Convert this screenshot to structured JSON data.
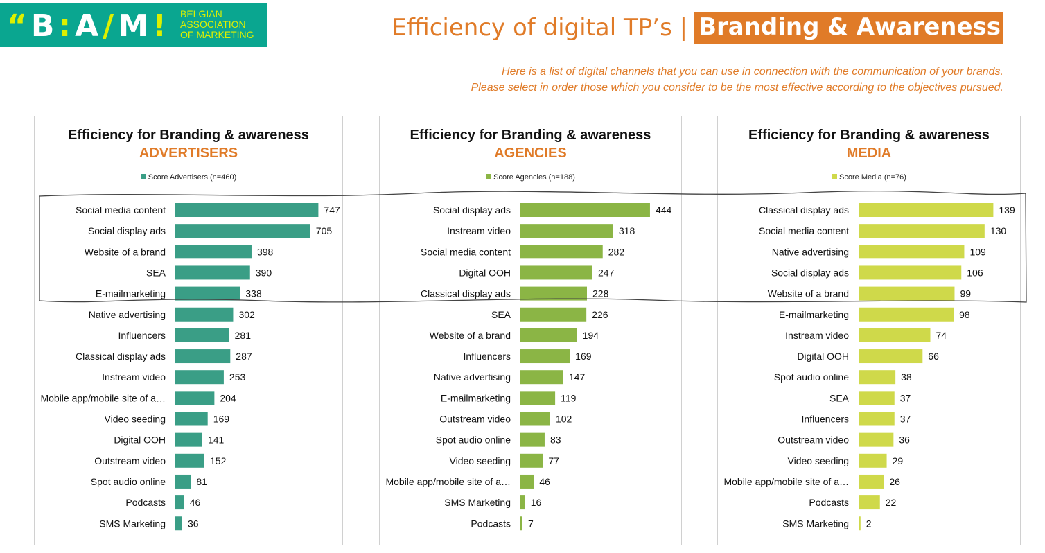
{
  "header": {
    "logo_quote": "“",
    "logo_b": "B",
    "logo_colon": ":",
    "logo_a": "A",
    "logo_slash": "/",
    "logo_m": "M",
    "logo_excl": "!",
    "logo_line1": "BELGIAN",
    "logo_line2": "ASSOCIATION",
    "logo_line3": "OF MARKETING",
    "title_main": "Efficiency  of digital TP’s |",
    "title_highlight": "Branding & Awareness",
    "subtitle_line1": "Here is a list of digital channels that you can use in connection with the communication of your brands.",
    "subtitle_line2": "Please select in order those which you consider to be the most effective according to the objectives pursued."
  },
  "colors": {
    "accent": "#e07b28",
    "logo_bg": "#0aa690",
    "logo_text": "#ddf000",
    "advertisers": "#3a9e86",
    "agencies": "#8bb545",
    "media": "#cfd94a"
  },
  "chart_data": [
    {
      "type": "bar",
      "orientation": "horizontal",
      "title": "Efficiency for Branding & awareness",
      "subtitle": "ADVERTISERS",
      "legend": "Score Advertisers (n=460)",
      "categories": [
        "Social media content",
        "Social display ads",
        "Website of a brand",
        "SEA",
        "E-mailmarketing",
        "Native advertising",
        "Influencers",
        "Classical display ads",
        "Instream video",
        "Mobile app/mobile site of a…",
        "Video seeding",
        "Digital OOH",
        "Outstream video",
        "Spot audio online",
        "Podcasts",
        "SMS Marketing"
      ],
      "values": [
        747,
        705,
        398,
        390,
        338,
        302,
        281,
        287,
        253,
        204,
        169,
        141,
        152,
        81,
        46,
        36
      ],
      "xlim": [
        0,
        760
      ],
      "highlight_top": 5
    },
    {
      "type": "bar",
      "orientation": "horizontal",
      "title": "Efficiency for Branding & awareness",
      "subtitle": "AGENCIES",
      "legend": "Score Agencies (n=188)",
      "categories": [
        "Social display ads",
        "Instream video",
        "Social media content",
        "Digital OOH",
        "Classical display ads",
        "SEA",
        "Website of a brand",
        "Influencers",
        "Native advertising",
        "E-mailmarketing",
        "Outstream video",
        "Spot audio online",
        "Video seeding",
        "Mobile app/mobile site of a…",
        "SMS Marketing",
        "Podcasts"
      ],
      "values": [
        444,
        318,
        282,
        247,
        228,
        226,
        194,
        169,
        147,
        119,
        102,
        83,
        77,
        46,
        16,
        7
      ],
      "xlim": [
        0,
        456
      ],
      "highlight_top": 5
    },
    {
      "type": "bar",
      "orientation": "horizontal",
      "title": "Efficiency for Branding & awareness",
      "subtitle": "MEDIA",
      "legend": "Score Media (n=76)",
      "categories": [
        "Classical display ads",
        "Social media content",
        "Native advertising",
        "Social display ads",
        "Website of a brand",
        "E-mailmarketing",
        "Instream video",
        "Digital OOH",
        "Spot audio online",
        "SEA",
        "Influencers",
        "Outstream video",
        "Video seeding",
        "Mobile app/mobile site of a…",
        "Podcasts",
        "SMS Marketing"
      ],
      "values": [
        139,
        130,
        109,
        106,
        99,
        98,
        74,
        66,
        38,
        37,
        37,
        36,
        29,
        26,
        22,
        2
      ],
      "xlim": [
        0,
        143
      ],
      "highlight_top": 5
    }
  ]
}
